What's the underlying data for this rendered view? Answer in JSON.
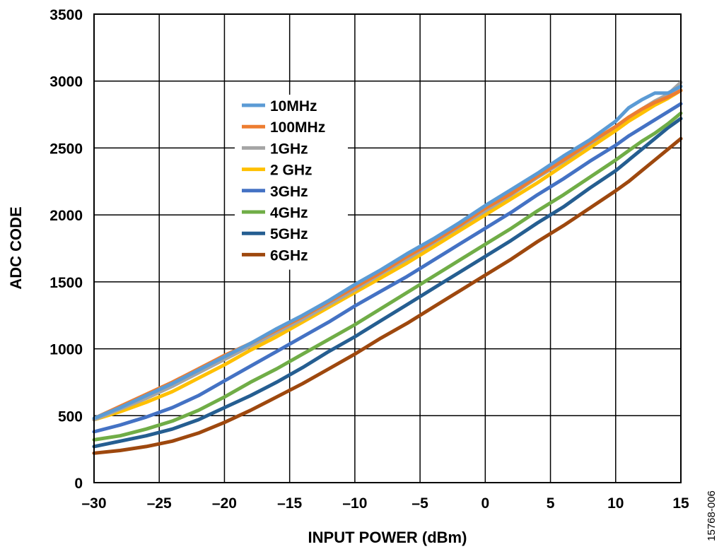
{
  "chart_data": {
    "type": "line",
    "xlabel": "INPUT POWER (dBm)",
    "ylabel": "ADC CODE",
    "xlim": [
      -30,
      15
    ],
    "ylim": [
      0,
      3500
    ],
    "xticks": [
      -30,
      -25,
      -20,
      -15,
      -10,
      -5,
      0,
      5,
      10,
      15
    ],
    "xtick_labels": [
      "–30",
      "–25",
      "–20",
      "–15",
      "–10",
      "–5",
      "0",
      "5",
      "10",
      "15"
    ],
    "yticks": [
      0,
      500,
      1000,
      1500,
      2000,
      2500,
      3000,
      3500
    ],
    "ytick_labels": [
      "0",
      "500",
      "1000",
      "1500",
      "2000",
      "2500",
      "3000",
      "3500"
    ],
    "grid": true,
    "legend_position": "upper-left-center",
    "figure_id": "15768-006",
    "x": [
      -30,
      -28,
      -26,
      -24,
      -22,
      -20,
      -18,
      -16,
      -14,
      -12,
      -10,
      -8,
      -6,
      -4,
      -2,
      0,
      2,
      4,
      6,
      8,
      10,
      11,
      12,
      13,
      14,
      15
    ],
    "series": [
      {
        "name": "10MHz",
        "color": "#5B9BD5",
        "values": [
          480,
          560,
          650,
          740,
          840,
          940,
          1040,
          1150,
          1250,
          1360,
          1480,
          1590,
          1710,
          1820,
          1940,
          2070,
          2190,
          2310,
          2440,
          2560,
          2700,
          2800,
          2860,
          2910,
          2910,
          2960
        ]
      },
      {
        "name": "100MHz",
        "color": "#ED7D31",
        "values": [
          480,
          570,
          660,
          750,
          850,
          950,
          1040,
          1140,
          1240,
          1350,
          1460,
          1570,
          1690,
          1800,
          1920,
          2050,
          2160,
          2290,
          2410,
          2540,
          2660,
          2730,
          2790,
          2840,
          2880,
          2930
        ]
      },
      {
        "name": "1GHz",
        "color": "#A5A5A5",
        "values": [
          470,
          550,
          630,
          720,
          820,
          920,
          1020,
          1120,
          1220,
          1330,
          1440,
          1560,
          1670,
          1790,
          1910,
          2030,
          2150,
          2280,
          2400,
          2530,
          2660,
          2730,
          2790,
          2850,
          2900,
          2990
        ]
      },
      {
        "name": "2 GHz",
        "color": "#FFC000",
        "values": [
          470,
          530,
          600,
          680,
          780,
          880,
          990,
          1090,
          1200,
          1310,
          1420,
          1530,
          1640,
          1760,
          1880,
          2000,
          2120,
          2240,
          2370,
          2500,
          2630,
          2700,
          2760,
          2820,
          2870,
          2930
        ]
      },
      {
        "name": "3GHz",
        "color": "#4472C4",
        "values": [
          380,
          430,
          490,
          560,
          650,
          760,
          870,
          980,
          1090,
          1200,
          1320,
          1430,
          1540,
          1660,
          1780,
          1900,
          2020,
          2150,
          2270,
          2400,
          2520,
          2590,
          2650,
          2710,
          2770,
          2830
        ]
      },
      {
        "name": "4GHz",
        "color": "#70AD47",
        "values": [
          320,
          350,
          400,
          460,
          540,
          640,
          750,
          850,
          960,
          1070,
          1180,
          1300,
          1420,
          1540,
          1660,
          1780,
          1900,
          2030,
          2150,
          2280,
          2410,
          2480,
          2550,
          2610,
          2680,
          2760
        ]
      },
      {
        "name": "5GHz",
        "color": "#255E91",
        "values": [
          270,
          310,
          350,
          400,
          470,
          560,
          650,
          750,
          860,
          980,
          1090,
          1210,
          1330,
          1450,
          1570,
          1690,
          1810,
          1940,
          2060,
          2200,
          2330,
          2410,
          2490,
          2570,
          2650,
          2720
        ]
      },
      {
        "name": "6GHz",
        "color": "#9E480E",
        "values": [
          220,
          240,
          270,
          310,
          370,
          450,
          540,
          640,
          740,
          850,
          960,
          1080,
          1190,
          1310,
          1430,
          1550,
          1670,
          1800,
          1920,
          2050,
          2180,
          2250,
          2330,
          2410,
          2490,
          2570
        ]
      }
    ]
  }
}
